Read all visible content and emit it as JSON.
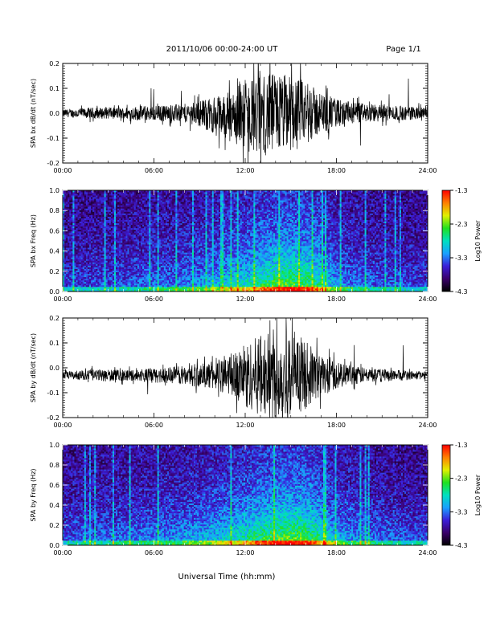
{
  "header": {
    "title": "2011/10/06  00:00-24:00 UT",
    "page": "Page 1/1"
  },
  "xaxis_label": "Universal Time (hh:mm)",
  "chart_data": [
    {
      "type": "line",
      "ylabel": "SPA bx dB/dt (nT/sec)",
      "xlim": [
        "00:00",
        "24:00"
      ],
      "ylim": [
        -0.2,
        0.2
      ],
      "x_ticks": [
        "00:00",
        "06:00",
        "12:00",
        "18:00",
        "24:00"
      ],
      "y_ticks": [
        "-0.2",
        "-0.1",
        "0.0",
        "0.1",
        "0.2"
      ],
      "envelope": {
        "x_hours": [
          0,
          2,
          4,
          5,
          6,
          8,
          9,
          10,
          11,
          12,
          13,
          14,
          15,
          16,
          17,
          18,
          19,
          20,
          22,
          24
        ],
        "amplitude": [
          0.02,
          0.03,
          0.03,
          0.04,
          0.04,
          0.05,
          0.07,
          0.1,
          0.13,
          0.18,
          0.22,
          0.22,
          0.21,
          0.17,
          0.11,
          0.08,
          0.06,
          0.05,
          0.04,
          0.03
        ],
        "offset": [
          0.0,
          0.0,
          0.0,
          0.0,
          0.0,
          0.0,
          0.0,
          -0.01,
          -0.01,
          0.0,
          -0.01,
          0.0,
          0.0,
          0.0,
          0.0,
          0.0,
          0.0,
          0.0,
          0.0,
          0.0
        ]
      }
    },
    {
      "type": "heatmap",
      "ylabel": "SPA bx Freq (Hz)",
      "xlim": [
        "00:00",
        "24:00"
      ],
      "ylim": [
        0.0,
        1.0
      ],
      "x_ticks": [
        "00:00",
        "06:00",
        "12:00",
        "18:00",
        "24:00"
      ],
      "y_ticks": [
        "0.0",
        "0.2",
        "0.4",
        "0.6",
        "0.8",
        "1.0"
      ],
      "colorbar": {
        "label": "Log10 Power",
        "ticks": [
          "-1.3",
          "-2.3",
          "-3.3",
          "-4.3"
        ],
        "range": [
          -4.3,
          -1.3
        ],
        "colors": [
          "#000000",
          "#3a006a",
          "#3b1ed8",
          "#1aa0ff",
          "#00e0c0",
          "#20e020",
          "#e0f000",
          "#ff8000",
          "#ff0000"
        ]
      },
      "activity": {
        "x_hours": [
          0,
          3,
          6,
          8,
          10,
          11,
          12,
          13,
          14,
          15,
          16,
          17,
          18,
          20,
          22,
          24
        ],
        "level": [
          0.25,
          0.3,
          0.35,
          0.4,
          0.5,
          0.6,
          0.65,
          0.75,
          0.85,
          0.9,
          0.85,
          0.7,
          0.45,
          0.35,
          0.3,
          0.25
        ]
      }
    },
    {
      "type": "line",
      "ylabel": "SPA by dB/dt (nT/sec)",
      "xlim": [
        "00:00",
        "24:00"
      ],
      "ylim": [
        -0.2,
        0.2
      ],
      "x_ticks": [
        "00:00",
        "06:00",
        "12:00",
        "18:00",
        "24:00"
      ],
      "y_ticks": [
        "-0.2",
        "-0.1",
        "0.0",
        "0.1",
        "0.2"
      ],
      "envelope": {
        "x_hours": [
          0,
          2,
          4,
          5,
          6,
          8,
          9,
          10,
          11,
          12,
          13,
          14,
          15,
          16,
          17,
          18,
          19,
          20,
          22,
          24
        ],
        "amplitude": [
          0.02,
          0.03,
          0.03,
          0.03,
          0.04,
          0.05,
          0.06,
          0.08,
          0.11,
          0.16,
          0.22,
          0.23,
          0.22,
          0.18,
          0.11,
          0.07,
          0.05,
          0.04,
          0.03,
          0.02
        ],
        "offset": [
          -0.03,
          -0.03,
          -0.03,
          -0.03,
          -0.03,
          -0.03,
          -0.03,
          -0.03,
          -0.03,
          -0.03,
          -0.03,
          -0.03,
          -0.03,
          -0.03,
          -0.03,
          -0.03,
          -0.03,
          -0.03,
          -0.03,
          -0.03
        ]
      }
    },
    {
      "type": "heatmap",
      "ylabel": "SPA by Freq (Hz)",
      "xlim": [
        "00:00",
        "24:00"
      ],
      "ylim": [
        0.0,
        1.0
      ],
      "x_ticks": [
        "00:00",
        "06:00",
        "12:00",
        "18:00",
        "24:00"
      ],
      "y_ticks": [
        "0.0",
        "0.2",
        "0.4",
        "0.6",
        "0.8",
        "1.0"
      ],
      "colorbar": {
        "label": "Log10 Power",
        "ticks": [
          "-1.3",
          "-2.3",
          "-3.3",
          "-4.3"
        ],
        "range": [
          -4.3,
          -1.3
        ],
        "colors": [
          "#000000",
          "#3a006a",
          "#3b1ed8",
          "#1aa0ff",
          "#00e0c0",
          "#20e020",
          "#e0f000",
          "#ff8000",
          "#ff0000"
        ]
      },
      "activity": {
        "x_hours": [
          0,
          3,
          6,
          8,
          10,
          11,
          12,
          13,
          14,
          15,
          16,
          17,
          18,
          20,
          22,
          24
        ],
        "level": [
          0.3,
          0.35,
          0.4,
          0.45,
          0.55,
          0.6,
          0.7,
          0.8,
          0.88,
          0.92,
          0.88,
          0.72,
          0.5,
          0.38,
          0.32,
          0.28
        ]
      }
    }
  ]
}
